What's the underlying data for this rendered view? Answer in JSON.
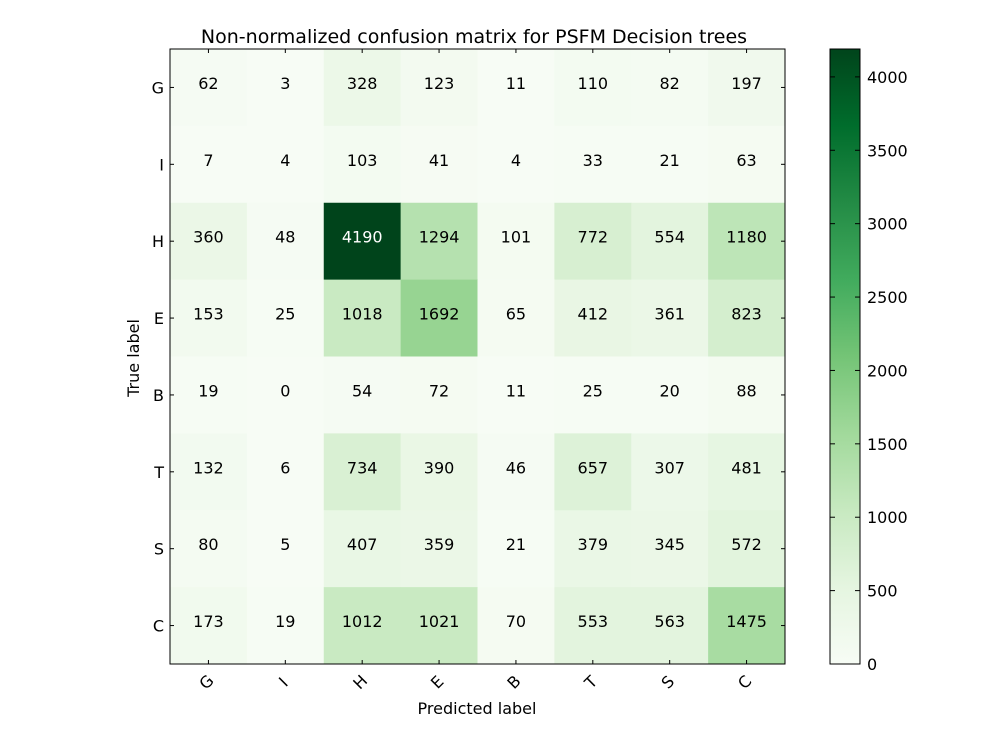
{
  "chart_data": {
    "type": "heatmap",
    "title": "Non-normalized confusion matrix for PSFM Decision trees",
    "xlabel": "Predicted label",
    "ylabel": "True label",
    "x_categories": [
      "G",
      "I",
      "H",
      "E",
      "B",
      "T",
      "S",
      "C"
    ],
    "y_categories": [
      "G",
      "I",
      "H",
      "E",
      "B",
      "T",
      "S",
      "C"
    ],
    "values": [
      [
        62,
        3,
        328,
        123,
        11,
        110,
        82,
        197
      ],
      [
        7,
        4,
        103,
        41,
        4,
        33,
        21,
        63
      ],
      [
        360,
        48,
        4190,
        1294,
        101,
        772,
        554,
        1180
      ],
      [
        153,
        25,
        1018,
        1692,
        65,
        412,
        361,
        823
      ],
      [
        19,
        0,
        54,
        72,
        11,
        25,
        20,
        88
      ],
      [
        132,
        6,
        734,
        390,
        46,
        657,
        307,
        481
      ],
      [
        80,
        5,
        407,
        359,
        21,
        379,
        345,
        572
      ],
      [
        173,
        19,
        1012,
        1021,
        70,
        553,
        563,
        1475
      ]
    ],
    "colorbar": {
      "min": 0,
      "max": 4190,
      "ticks": [
        0,
        500,
        1000,
        1500,
        2000,
        2500,
        3000,
        3500,
        4000
      ],
      "colormap": "Greens",
      "low_color": "#f7fcf5",
      "high_color": "#00441b"
    },
    "grid": false,
    "x_tick_rotation_deg": 45,
    "text_color_dark": "#000000",
    "text_color_light": "#ffffff"
  }
}
